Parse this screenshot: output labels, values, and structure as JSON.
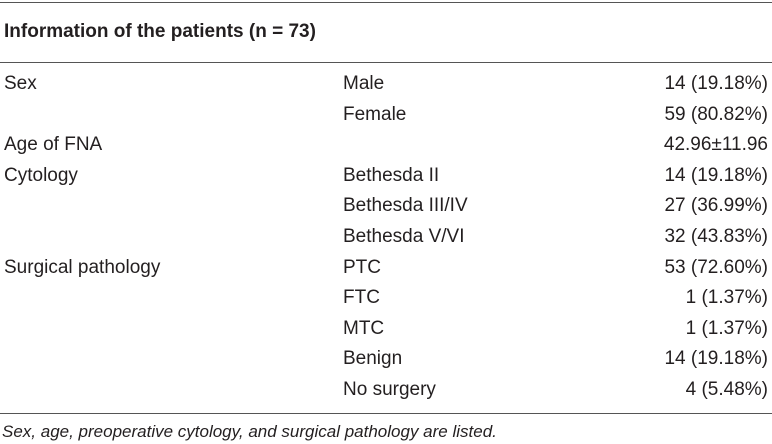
{
  "table": {
    "title": "Information of the patients (n = 73)",
    "rows": [
      [
        "Sex",
        "Male",
        "14 (19.18%)"
      ],
      [
        null,
        "Female",
        "59 (80.82%)"
      ],
      [
        "Age of FNA",
        null,
        "42.96±11.96"
      ],
      [
        "Cytology",
        "Bethesda II",
        "14 (19.18%)"
      ],
      [
        null,
        "Bethesda III/IV",
        "27 (36.99%)"
      ],
      [
        null,
        "Bethesda V/VI",
        "32 (43.83%)"
      ],
      [
        "Surgical pathology",
        "PTC",
        "53 (72.60%)"
      ],
      [
        null,
        "FTC",
        "1 (1.37%)"
      ],
      [
        null,
        "MTC",
        "1 (1.37%)"
      ],
      [
        null,
        "Benign",
        "14 (19.18%)"
      ],
      [
        null,
        "No surgery",
        "4 (5.48%)"
      ]
    ],
    "footnote": "Sex, age, preoperative cytology, and surgical pathology are listed."
  }
}
